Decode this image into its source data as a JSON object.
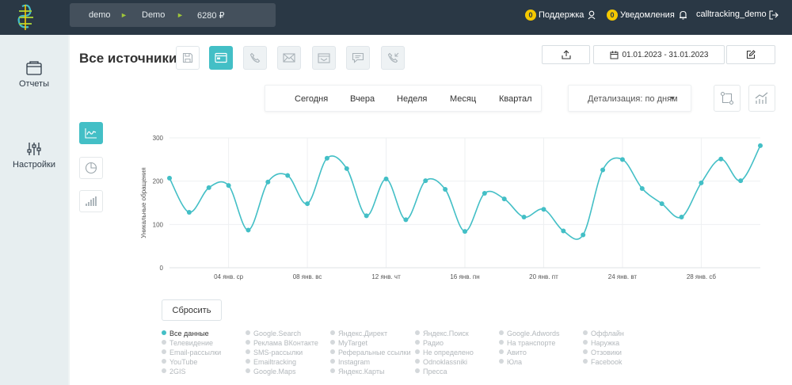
{
  "topbar": {
    "account_login": "demo",
    "account_name": "Demo",
    "balance": "6280 ₽",
    "support_count": "0",
    "support_label": "Поддержка",
    "notify_count": "0",
    "notify_label": "Уведомления",
    "username": "calltracking_demo"
  },
  "sidebar": {
    "items": [
      {
        "label": "Отчеты",
        "icon": "reports-icon"
      },
      {
        "label": "Настройки",
        "icon": "settings-sliders-icon"
      }
    ]
  },
  "page": {
    "title": "Все источники",
    "date_range": "01.01.2023 - 31.01.2023"
  },
  "range_tabs": [
    "Сегодня",
    "Вчера",
    "Неделя",
    "Месяц",
    "Квартал"
  ],
  "detail": {
    "label": "Детализация: по дням"
  },
  "colors": {
    "accent": "#43bfc6",
    "topbar": "#2a3845",
    "badge": "#f4c800"
  },
  "chart_data": {
    "type": "line",
    "ylabel": "Уникальные обращения",
    "ylim": [
      0,
      300
    ],
    "yticks": [
      0,
      100,
      200,
      300
    ],
    "xticks": [
      {
        "day": 4,
        "label": "04 янв. ср"
      },
      {
        "day": 8,
        "label": "08 янв. вс"
      },
      {
        "day": 12,
        "label": "12 янв. чт"
      },
      {
        "day": 16,
        "label": "16 янв. пн"
      },
      {
        "day": 20,
        "label": "20 янв. пт"
      },
      {
        "day": 24,
        "label": "24 янв. вт"
      },
      {
        "day": 28,
        "label": "28 янв. сб"
      }
    ],
    "series": [
      {
        "name": "Все данные",
        "x": [
          1,
          2,
          3,
          4,
          5,
          6,
          7,
          8,
          9,
          10,
          11,
          12,
          13,
          14,
          15,
          16,
          17,
          18,
          19,
          20,
          21,
          22,
          23,
          24,
          25,
          26,
          27,
          28,
          29,
          30,
          31
        ],
        "values": [
          207,
          128,
          185,
          190,
          87,
          198,
          213,
          148,
          253,
          229,
          120,
          205,
          111,
          201,
          181,
          84,
          172,
          159,
          117,
          135,
          85,
          76,
          226,
          250,
          183,
          148,
          117,
          196,
          251,
          201,
          282
        ]
      }
    ]
  },
  "reset_label": "Сбросить",
  "legend": [
    [
      "Все данные",
      "Телевидение",
      "Email-рассылки",
      "YouTube",
      "2GIS"
    ],
    [
      "Google.Search",
      "Реклама ВКонтакте",
      "SMS-рассылки",
      "Emailtracking",
      "Google.Maps"
    ],
    [
      "Яндекс.Директ",
      "MyTarget",
      "Реферальные ссылки",
      "Instagram",
      "Яндекс.Карты"
    ],
    [
      "Яндекс.Поиск",
      "Радио",
      "Не определено",
      "Odnoklassniki",
      "Пресса"
    ],
    [
      "Google.Adwords",
      "На транспорте",
      "Авито",
      "Юла"
    ],
    [
      "Оффлайн",
      "Наружка",
      "Отзовики",
      "Facebook"
    ]
  ]
}
